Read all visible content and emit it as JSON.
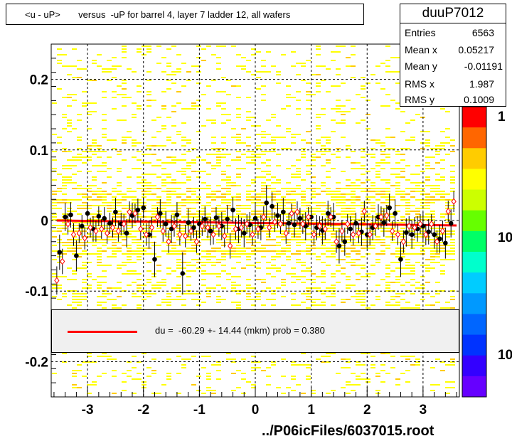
{
  "title": "<u - uP>       versus  -uP for barrel 4, layer 7 ladder 12, all wafers",
  "stats": {
    "name": "duuP7012",
    "rows": [
      {
        "label": "Entries",
        "value": "6563"
      },
      {
        "label": "Mean x",
        "value": "0.05217"
      },
      {
        "label": "Mean y",
        "value": "-0.01191"
      },
      {
        "label": "RMS x",
        "value": "1.987"
      },
      {
        "label": "RMS y",
        "value": "0.1009"
      }
    ]
  },
  "fit": {
    "text": "du =  -60.29 +- 14.44 (mkm) prob = 0.380",
    "line_color": "#ff0000"
  },
  "file_label": "../P06icFiles/6037015.root",
  "palette": {
    "tick_labels": [
      "1",
      "10",
      "10"
    ],
    "colors": [
      "#ff0000",
      "#ff6600",
      "#ffcc00",
      "#ffff00",
      "#ccff00",
      "#66ff00",
      "#00ff66",
      "#00ffcc",
      "#00ccff",
      "#0099ff",
      "#0066ff",
      "#0033ff",
      "#3300ff",
      "#6600ff"
    ]
  },
  "chart_data": {
    "type": "scatter",
    "title": "<u - uP>       versus  -uP for barrel 4, layer 7 ladder 12, all wafers",
    "xlabel": "",
    "ylabel": "",
    "xlim": [
      -3.65,
      3.65
    ],
    "ylim": [
      -0.25,
      0.25
    ],
    "x_ticks": [
      -3,
      -2,
      -1,
      0,
      1,
      2,
      3
    ],
    "x_tick_labels": [
      "-3",
      "-2",
      "-1",
      "0",
      "1",
      "2",
      "3"
    ],
    "y_ticks": [
      -0.2,
      -0.1,
      0,
      0.1,
      0.2
    ],
    "y_tick_labels": [
      "-0.2",
      "-0.1",
      "0",
      "0.1",
      "0.2"
    ],
    "grid": true,
    "fit_line": {
      "x": [
        -3.55,
        3.6
      ],
      "y": [
        0.0,
        -0.007
      ]
    },
    "series": [
      {
        "marker": "filled-circle",
        "color": "#000000",
        "x": [
          -3.5,
          -3.4,
          -3.3,
          -3.2,
          -3.1,
          -3.0,
          -2.9,
          -2.8,
          -2.7,
          -2.6,
          -2.5,
          -2.4,
          -2.3,
          -2.2,
          -2.1,
          -2.0,
          -1.9,
          -1.8,
          -1.7,
          -1.6,
          -1.5,
          -1.4,
          -1.3,
          -1.2,
          -1.1,
          -1.0,
          -0.9,
          -0.8,
          -0.7,
          -0.6,
          -0.5,
          -0.4,
          -0.3,
          -0.2,
          -0.1,
          0.0,
          0.1,
          0.2,
          0.3,
          0.4,
          0.5,
          0.6,
          0.7,
          0.8,
          0.9,
          1.0,
          1.1,
          1.2,
          1.3,
          1.4,
          1.5,
          1.6,
          1.7,
          1.8,
          1.9,
          2.0,
          2.1,
          2.2,
          2.3,
          2.4,
          2.5,
          2.6,
          2.7,
          2.8,
          2.9,
          3.0,
          3.1,
          3.2,
          3.3,
          3.4,
          3.5
        ],
        "y": [
          -0.045,
          0.005,
          0.008,
          -0.05,
          -0.008,
          0.01,
          -0.012,
          0.006,
          0.003,
          -0.004,
          0.012,
          -0.005,
          -0.018,
          0.007,
          0.015,
          0.018,
          -0.02,
          -0.055,
          0.01,
          -0.005,
          -0.012,
          0.008,
          -0.075,
          -0.003,
          -0.01,
          -0.005,
          0.002,
          -0.015,
          0.004,
          -0.008,
          0.002,
          0.015,
          -0.012,
          -0.018,
          -0.006,
          0.003,
          -0.01,
          0.025,
          0.02,
          0.007,
          0.012,
          -0.004,
          -0.006,
          0.003,
          -0.008,
          0.005,
          -0.01,
          -0.014,
          0.01,
          0.005,
          -0.036,
          -0.03,
          -0.012,
          -0.004,
          -0.016,
          -0.02,
          -0.01,
          0.005,
          -0.003,
          0.018,
          0.01,
          -0.055,
          -0.017,
          -0.02,
          -0.012,
          -0.008,
          -0.016,
          -0.02,
          -0.026,
          -0.032,
          -0.004
        ],
        "err": [
          0.025,
          0.02,
          0.018,
          0.022,
          0.016,
          0.015,
          0.018,
          0.014,
          0.016,
          0.015,
          0.02,
          0.016,
          0.02,
          0.018,
          0.016,
          0.015,
          0.02,
          0.025,
          0.02,
          0.018,
          0.02,
          0.018,
          0.03,
          0.02,
          0.015,
          0.02,
          0.018,
          0.02,
          0.015,
          0.02,
          0.02,
          0.018,
          0.02,
          0.02,
          0.018,
          0.02,
          0.018,
          0.025,
          0.02,
          0.018,
          0.02,
          0.015,
          0.018,
          0.015,
          0.02,
          0.015,
          0.018,
          0.02,
          0.018,
          0.02,
          0.025,
          0.02,
          0.018,
          0.015,
          0.02,
          0.02,
          0.018,
          0.018,
          0.02,
          0.02,
          0.02,
          0.025,
          0.02,
          0.02,
          0.018,
          0.02,
          0.018,
          0.02,
          0.02,
          0.022,
          0.02
        ]
      },
      {
        "marker": "open-diamond",
        "color": "#ff0000",
        "x": [
          -3.55,
          -3.45,
          -3.35,
          -3.25,
          -3.15,
          -3.05,
          -2.95,
          -2.85,
          -2.75,
          -2.65,
          -2.55,
          -2.45,
          -2.35,
          -2.25,
          -2.15,
          -2.05,
          -1.95,
          -1.85,
          -1.75,
          -1.65,
          -1.55,
          -1.45,
          -1.35,
          -1.25,
          -1.15,
          -1.05,
          -0.95,
          -0.85,
          -0.75,
          -0.65,
          -0.55,
          -0.45,
          -0.35,
          -0.25,
          -0.15,
          -0.05,
          0.05,
          0.15,
          0.25,
          0.35,
          0.45,
          0.55,
          0.65,
          0.75,
          0.85,
          0.95,
          1.05,
          1.15,
          1.25,
          1.35,
          1.45,
          1.55,
          1.65,
          1.75,
          1.85,
          1.95,
          2.05,
          2.15,
          2.25,
          2.35,
          2.45,
          2.55,
          2.65,
          2.75,
          2.85,
          2.95,
          3.05,
          3.15,
          3.25,
          3.35,
          3.45,
          3.55
        ],
        "y": [
          -0.085,
          -0.058,
          -0.005,
          -0.02,
          -0.018,
          -0.025,
          -0.01,
          -0.015,
          -0.012,
          -0.018,
          -0.01,
          -0.015,
          -0.005,
          0.012,
          0.01,
          -0.012,
          -0.02,
          -0.01,
          0.005,
          -0.015,
          -0.03,
          -0.008,
          -0.02,
          -0.022,
          -0.015,
          -0.03,
          -0.008,
          -0.01,
          -0.02,
          -0.008,
          -0.022,
          -0.036,
          -0.012,
          -0.01,
          -0.005,
          -0.02,
          -0.012,
          0.005,
          -0.01,
          -0.002,
          -0.005,
          -0.018,
          0.01,
          0.012,
          -0.005,
          0.005,
          -0.02,
          -0.008,
          -0.012,
          0.005,
          -0.03,
          -0.015,
          -0.005,
          -0.02,
          -0.018,
          0.013,
          -0.02,
          -0.008,
          0.005,
          0.007,
          -0.015,
          -0.02,
          -0.03,
          -0.008,
          -0.01,
          -0.005,
          -0.02,
          -0.005,
          -0.03,
          -0.015,
          0.013,
          0.027
        ],
        "err": [
          0.02,
          0.018,
          0.015,
          0.016,
          0.014,
          0.016,
          0.014,
          0.015,
          0.014,
          0.015,
          0.014,
          0.015,
          0.014,
          0.015,
          0.014,
          0.015,
          0.016,
          0.015,
          0.014,
          0.015,
          0.016,
          0.015,
          0.015,
          0.016,
          0.014,
          0.016,
          0.014,
          0.015,
          0.014,
          0.015,
          0.016,
          0.018,
          0.015,
          0.014,
          0.014,
          0.015,
          0.014,
          0.015,
          0.014,
          0.014,
          0.014,
          0.015,
          0.014,
          0.015,
          0.014,
          0.014,
          0.015,
          0.014,
          0.015,
          0.014,
          0.016,
          0.015,
          0.014,
          0.015,
          0.014,
          0.015,
          0.015,
          0.014,
          0.015,
          0.015,
          0.014,
          0.015,
          0.016,
          0.014,
          0.015,
          0.014,
          0.015,
          0.014,
          0.016,
          0.015,
          0.015,
          0.015
        ]
      }
    ]
  }
}
